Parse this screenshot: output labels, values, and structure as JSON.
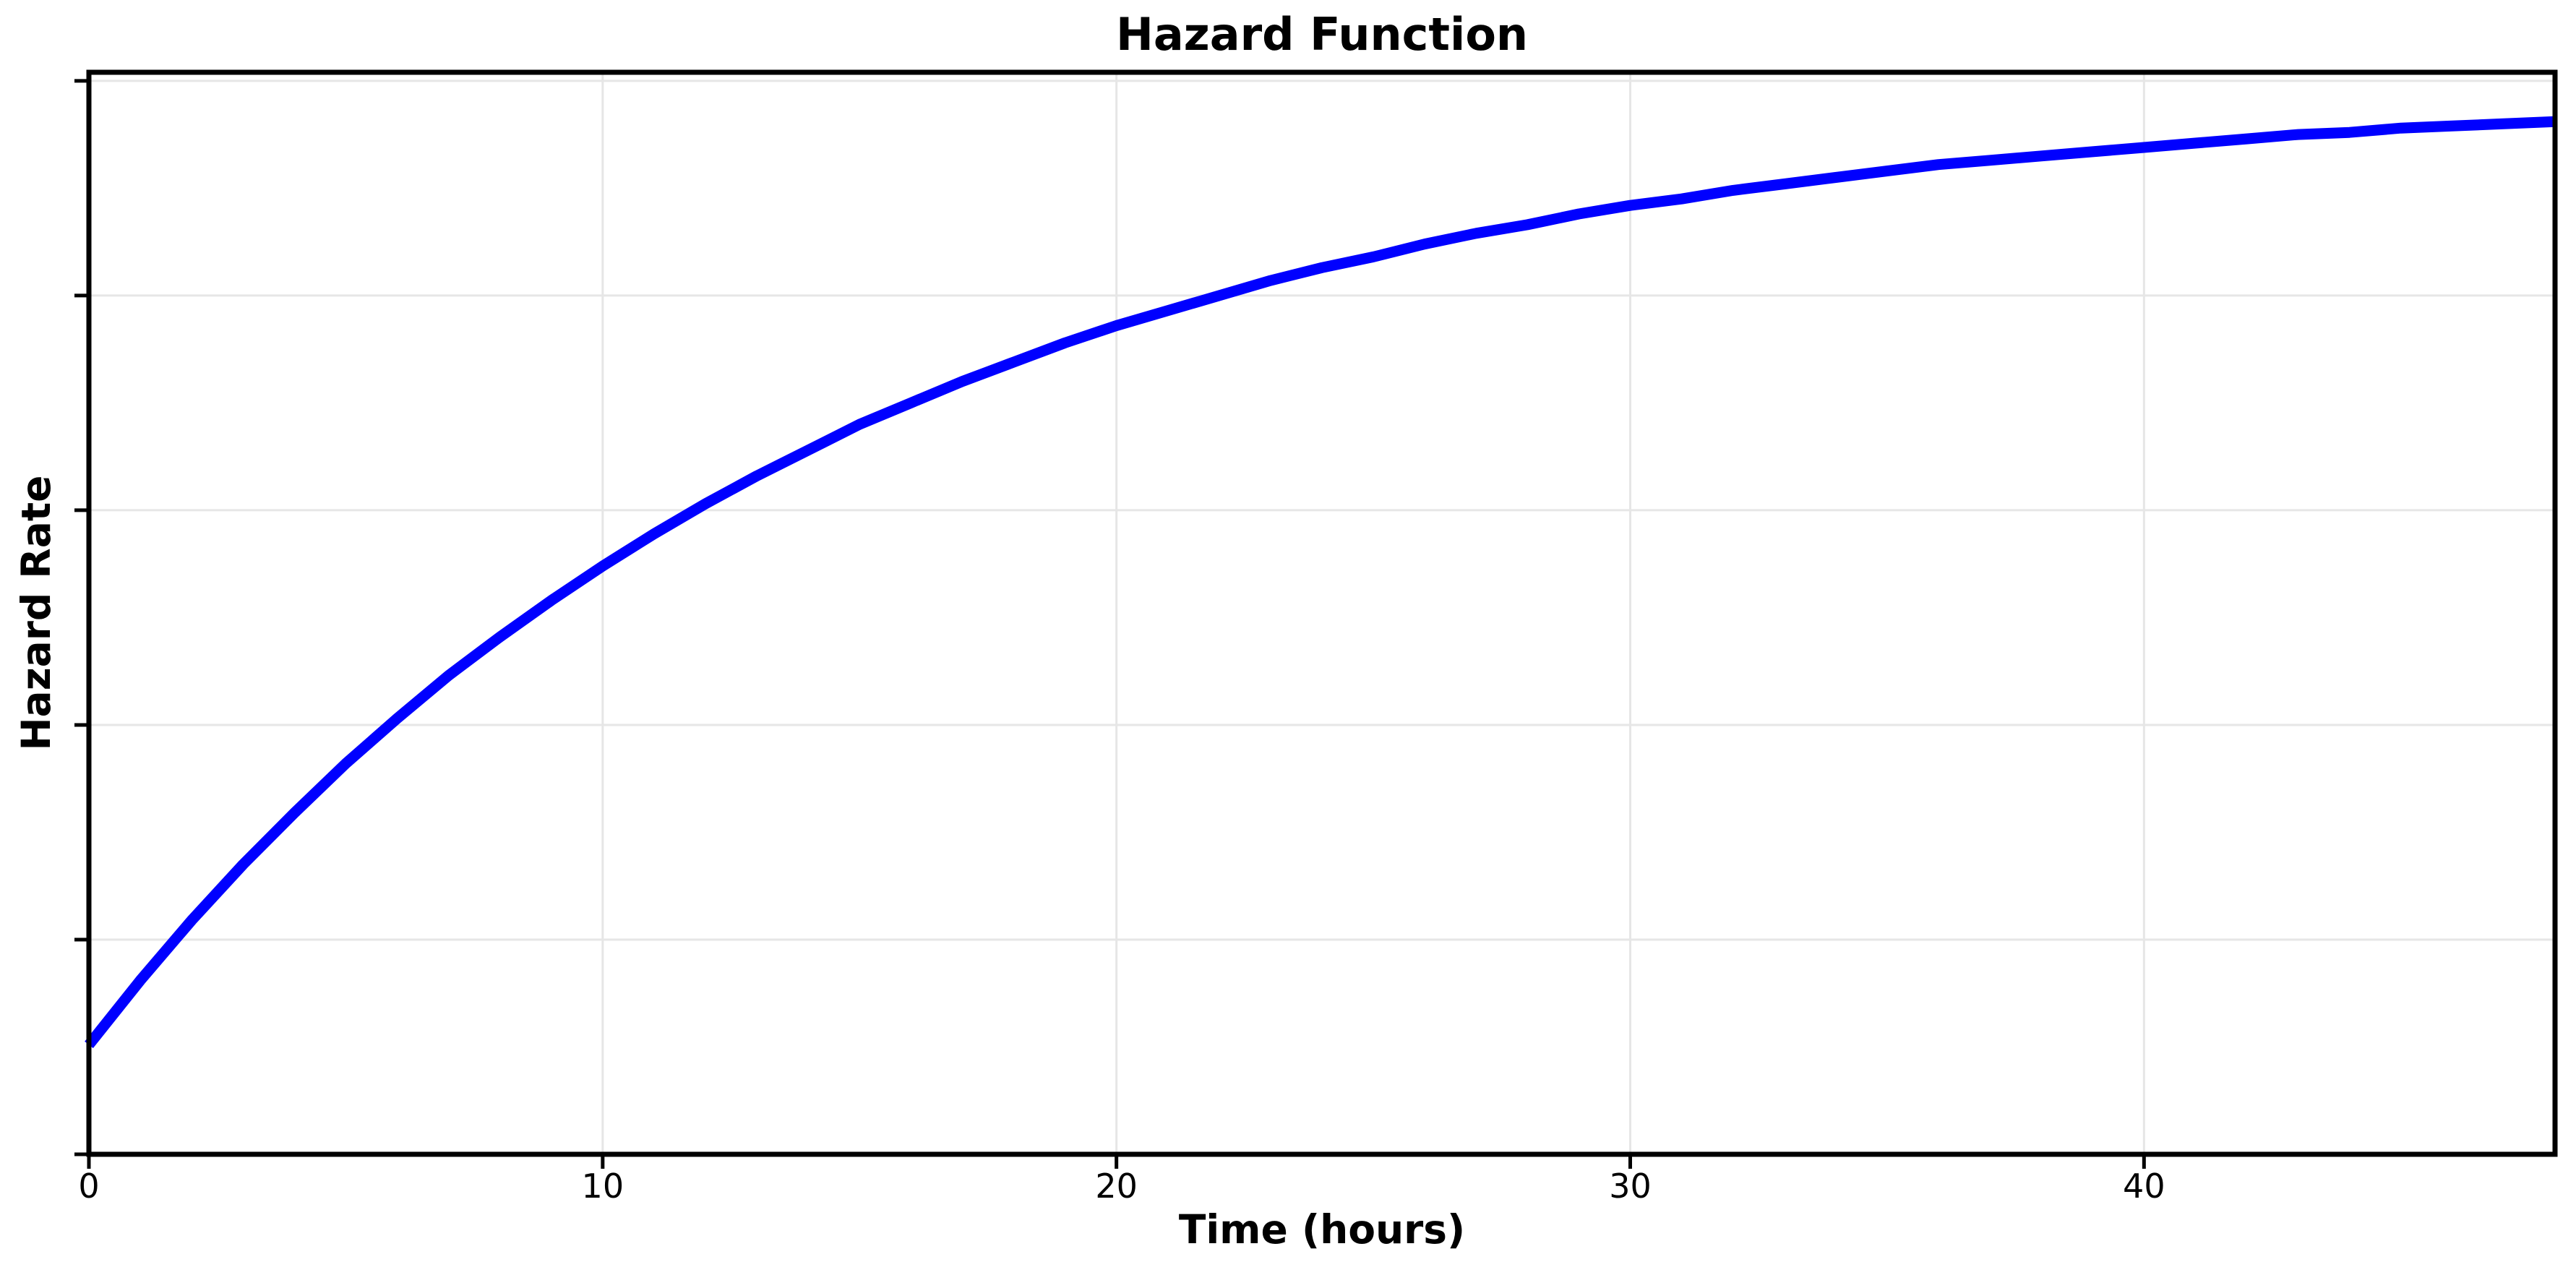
{
  "chart_data": {
    "type": "line",
    "title": "Hazard Function",
    "xlabel": "Time (hours)",
    "ylabel": "Hazard Rate",
    "x_tick_labels": [
      "0",
      "10",
      "20",
      "30",
      "40"
    ],
    "x_tick_values": [
      0,
      10,
      20,
      30,
      40
    ],
    "y_tick_values": [
      0,
      1,
      2,
      3,
      4,
      5
    ],
    "y_tick_labels_shown": false,
    "y_units": "unlabeled axis units (1 unit = spacing between adjacent y ticks/gridlines)",
    "xlim": [
      0,
      48
    ],
    "ylim": [
      0,
      5.04
    ],
    "grid": true,
    "legend": null,
    "colors": {
      "line": "#0000ff",
      "grid": "#e6e6e6",
      "axis": "#000000",
      "background": "#ffffff",
      "text": "#000000"
    },
    "series": [
      {
        "name": "hazard rate",
        "x": [
          0,
          1,
          2,
          3,
          4,
          5,
          6,
          7,
          8,
          9,
          10,
          11,
          12,
          13,
          14,
          15,
          16,
          17,
          18,
          19,
          20,
          21,
          22,
          23,
          24,
          25,
          26,
          27,
          28,
          29,
          30,
          31,
          32,
          33,
          34,
          35,
          36,
          37,
          38,
          39,
          40,
          41,
          42,
          43,
          44,
          45,
          46,
          47,
          48
        ],
        "y": [
          0.51,
          0.81,
          1.09,
          1.35,
          1.59,
          1.82,
          2.03,
          2.23,
          2.41,
          2.58,
          2.74,
          2.89,
          3.03,
          3.16,
          3.28,
          3.4,
          3.5,
          3.6,
          3.69,
          3.78,
          3.86,
          3.93,
          4.0,
          4.07,
          4.13,
          4.18,
          4.24,
          4.29,
          4.33,
          4.38,
          4.42,
          4.45,
          4.49,
          4.52,
          4.55,
          4.58,
          4.61,
          4.63,
          4.65,
          4.67,
          4.69,
          4.71,
          4.73,
          4.75,
          4.76,
          4.78,
          4.79,
          4.8,
          4.81
        ]
      }
    ]
  }
}
